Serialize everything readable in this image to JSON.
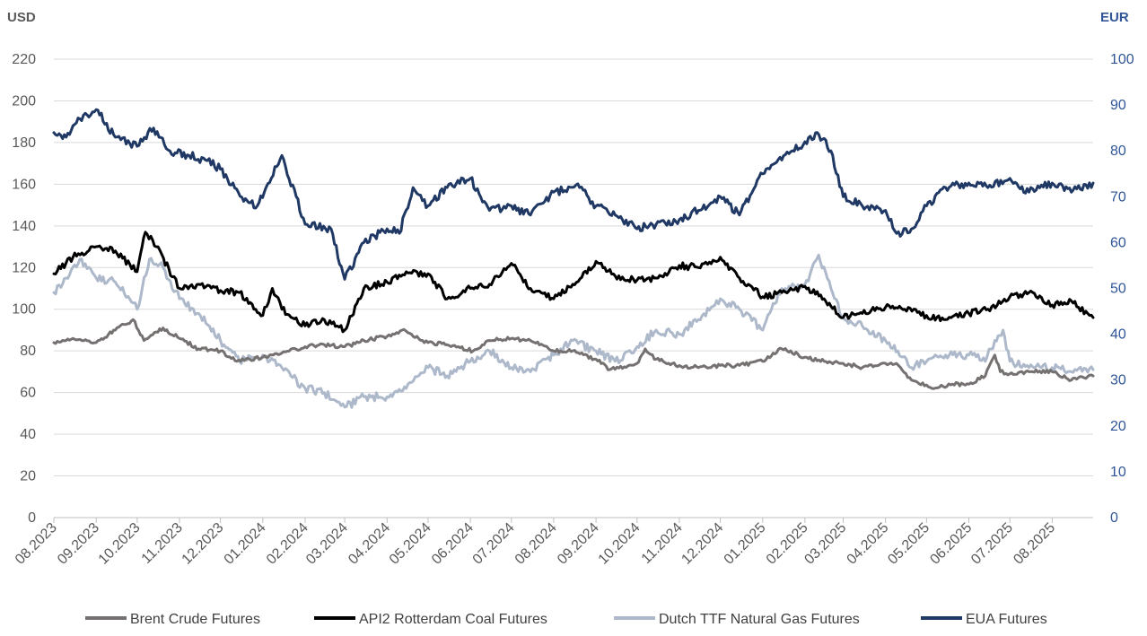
{
  "chart_data": {
    "type": "line",
    "left_axis": {
      "unit": "USD",
      "ylim": [
        0,
        220
      ],
      "ticks": [
        "0",
        "20",
        "40",
        "60",
        "80",
        "100",
        "120",
        "140",
        "160",
        "180",
        "200",
        "220"
      ],
      "color": "#595959"
    },
    "right_axis": {
      "unit": "EUR",
      "ylim": [
        0,
        100
      ],
      "ticks": [
        "0",
        "10",
        "20",
        "30",
        "40",
        "50",
        "60",
        "70",
        "80",
        "90",
        "100"
      ],
      "color": "#2f5597"
    },
    "x_ticks": [
      "08.2023",
      "09.2023",
      "10.2023",
      "11.2023",
      "12.2023",
      "01.2024",
      "02.2024",
      "03.2024",
      "04.2024",
      "05.2024",
      "06.2024",
      "07.2024",
      "08.2024",
      "09.2024",
      "10.2024",
      "11.2024",
      "12.2024",
      "01.2025",
      "02.2025",
      "03.2025",
      "04.2025",
      "05.2025",
      "06.2025",
      "07.2025",
      "08.2025"
    ],
    "x_range": [
      "2023-08-01",
      "2025-08-31"
    ],
    "grid": "horizontal",
    "legend_position": "bottom",
    "series": [
      {
        "name": "Brent Crude Futures",
        "axis": "left",
        "color": "#767171",
        "x": [
          "2023-08-01",
          "2023-08-15",
          "2023-09-01",
          "2023-09-15",
          "2023-09-28",
          "2023-10-06",
          "2023-10-20",
          "2023-11-01",
          "2023-11-15",
          "2023-12-01",
          "2023-12-13",
          "2024-01-01",
          "2024-01-15",
          "2024-02-01",
          "2024-02-15",
          "2024-03-01",
          "2024-03-15",
          "2024-04-01",
          "2024-04-12",
          "2024-05-01",
          "2024-05-15",
          "2024-06-03",
          "2024-06-15",
          "2024-07-01",
          "2024-07-15",
          "2024-08-01",
          "2024-08-15",
          "2024-09-01",
          "2024-09-11",
          "2024-10-01",
          "2024-10-07",
          "2024-10-15",
          "2024-11-01",
          "2024-11-15",
          "2024-12-01",
          "2024-12-15",
          "2025-01-01",
          "2025-01-15",
          "2025-02-01",
          "2025-02-15",
          "2025-03-01",
          "2025-03-15",
          "2025-04-01",
          "2025-04-09",
          "2025-04-20",
          "2025-05-05",
          "2025-05-20",
          "2025-06-01",
          "2025-06-13",
          "2025-06-20",
          "2025-06-24",
          "2025-07-01",
          "2025-07-15",
          "2025-08-01",
          "2025-08-15",
          "2025-08-31"
        ],
        "values": [
          84,
          86,
          84,
          90,
          95,
          85,
          91,
          86,
          81,
          80,
          75,
          77,
          79,
          82,
          83,
          82,
          85,
          87,
          90,
          84,
          83,
          80,
          85,
          86,
          85,
          80,
          80,
          76,
          71,
          74,
          81,
          76,
          73,
          72,
          73,
          73,
          75,
          81,
          77,
          75,
          74,
          72,
          74,
          74,
          66,
          62,
          64,
          64,
          68,
          78,
          70,
          69,
          70,
          70,
          66,
          68
        ]
      },
      {
        "name": "API2 Rotterdam Coal Futures",
        "axis": "left",
        "color": "#000000",
        "x": [
          "2023-08-01",
          "2023-08-15",
          "2023-09-01",
          "2023-09-15",
          "2023-10-01",
          "2023-10-07",
          "2023-10-15",
          "2023-11-01",
          "2023-11-15",
          "2023-12-01",
          "2023-12-15",
          "2024-01-01",
          "2024-01-08",
          "2024-01-15",
          "2024-02-01",
          "2024-02-15",
          "2024-03-01",
          "2024-03-15",
          "2024-04-01",
          "2024-04-15",
          "2024-05-01",
          "2024-05-15",
          "2024-06-01",
          "2024-06-15",
          "2024-07-01",
          "2024-07-15",
          "2024-08-01",
          "2024-08-15",
          "2024-09-01",
          "2024-09-15",
          "2024-10-01",
          "2024-10-15",
          "2024-11-01",
          "2024-11-15",
          "2024-12-01",
          "2024-12-15",
          "2025-01-01",
          "2025-01-15",
          "2025-02-01",
          "2025-02-15",
          "2025-03-01",
          "2025-03-15",
          "2025-04-01",
          "2025-04-15",
          "2025-05-01",
          "2025-05-15",
          "2025-06-01",
          "2025-06-15",
          "2025-07-01",
          "2025-07-15",
          "2025-08-01",
          "2025-08-15",
          "2025-08-31"
        ],
        "values": [
          117,
          125,
          130,
          128,
          118,
          137,
          130,
          110,
          112,
          109,
          108,
          97,
          110,
          100,
          92,
          95,
          90,
          110,
          113,
          118,
          117,
          105,
          110,
          112,
          122,
          110,
          105,
          112,
          123,
          116,
          114,
          115,
          121,
          120,
          125,
          115,
          106,
          108,
          111,
          105,
          96,
          98,
          101,
          100,
          97,
          95,
          98,
          100,
          106,
          108,
          102,
          104,
          96
        ]
      },
      {
        "name": "Dutch TTF Natural Gas Futures",
        "axis": "left",
        "color": "#adb9ca",
        "x": [
          "2023-08-01",
          "2023-08-10",
          "2023-08-20",
          "2023-09-01",
          "2023-09-15",
          "2023-10-01",
          "2023-10-10",
          "2023-10-20",
          "2023-11-01",
          "2023-11-15",
          "2023-12-01",
          "2023-12-15",
          "2024-01-01",
          "2024-01-15",
          "2024-02-01",
          "2024-02-15",
          "2024-03-01",
          "2024-03-15",
          "2024-04-01",
          "2024-04-15",
          "2024-05-01",
          "2024-05-15",
          "2024-06-01",
          "2024-06-15",
          "2024-07-01",
          "2024-07-15",
          "2024-08-01",
          "2024-08-15",
          "2024-09-01",
          "2024-09-15",
          "2024-10-01",
          "2024-10-15",
          "2024-11-01",
          "2024-11-15",
          "2024-12-01",
          "2024-12-15",
          "2025-01-01",
          "2025-01-15",
          "2025-02-01",
          "2025-02-11",
          "2025-02-20",
          "2025-03-01",
          "2025-03-15",
          "2025-04-01",
          "2025-04-10",
          "2025-04-20",
          "2025-05-01",
          "2025-05-15",
          "2025-06-01",
          "2025-06-13",
          "2025-06-20",
          "2025-06-26",
          "2025-07-01",
          "2025-07-15",
          "2025-08-01",
          "2025-08-15",
          "2025-08-31"
        ],
        "values": [
          108,
          115,
          124,
          115,
          113,
          100,
          124,
          120,
          105,
          98,
          85,
          75,
          78,
          72,
          62,
          60,
          53,
          58,
          58,
          62,
          72,
          68,
          75,
          80,
          72,
          70,
          78,
          85,
          80,
          75,
          82,
          90,
          88,
          95,
          105,
          100,
          90,
          110,
          112,
          126,
          110,
          96,
          92,
          85,
          80,
          72,
          75,
          78,
          78,
          75,
          85,
          90,
          75,
          72,
          72,
          70,
          71
        ]
      },
      {
        "name": "EUA Futures",
        "axis": "right",
        "color": "#1f3864",
        "x": [
          "2023-08-01",
          "2023-08-10",
          "2023-08-20",
          "2023-09-01",
          "2023-09-15",
          "2023-10-01",
          "2023-10-13",
          "2023-10-25",
          "2023-11-08",
          "2023-11-20",
          "2023-12-01",
          "2023-12-18",
          "2023-12-28",
          "2024-01-15",
          "2024-02-01",
          "2024-02-20",
          "2024-03-01",
          "2024-03-15",
          "2024-04-01",
          "2024-04-10",
          "2024-04-20",
          "2024-05-01",
          "2024-05-15",
          "2024-06-01",
          "2024-06-15",
          "2024-07-01",
          "2024-07-15",
          "2024-08-01",
          "2024-08-20",
          "2024-09-01",
          "2024-09-15",
          "2024-10-01",
          "2024-10-15",
          "2024-11-01",
          "2024-11-15",
          "2024-12-01",
          "2024-12-15",
          "2025-01-01",
          "2025-01-15",
          "2025-02-01",
          "2025-02-10",
          "2025-02-20",
          "2025-03-01",
          "2025-03-15",
          "2025-04-01",
          "2025-04-09",
          "2025-04-20",
          "2025-05-01",
          "2025-05-15",
          "2025-06-01",
          "2025-06-15",
          "2025-07-01",
          "2025-07-15",
          "2025-08-01",
          "2025-08-15",
          "2025-08-31"
        ],
        "values": [
          84,
          83,
          87,
          89,
          83,
          81,
          85,
          80,
          79,
          78,
          76,
          69,
          68,
          79,
          64,
          63,
          52,
          60,
          63,
          62,
          72,
          68,
          72,
          74,
          67,
          68,
          66,
          71,
          72,
          68,
          66,
          63,
          64,
          65,
          67,
          70,
          66,
          75,
          78,
          82,
          84,
          80,
          70,
          68,
          67,
          62,
          63,
          68,
          72,
          73,
          72,
          74,
          71,
          73,
          71,
          73
        ]
      }
    ]
  }
}
